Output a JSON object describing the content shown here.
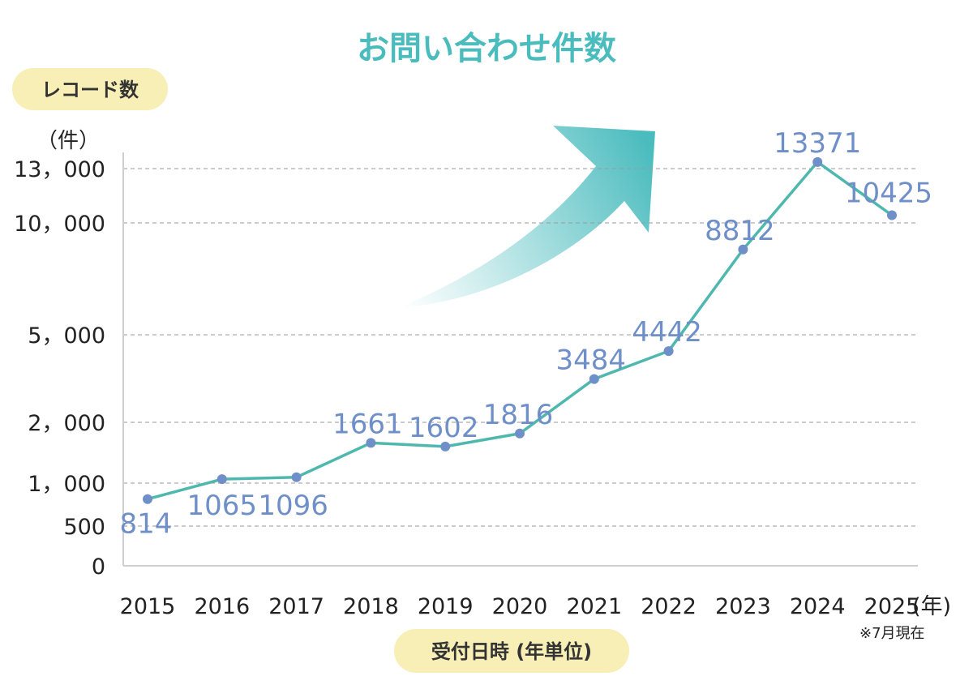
{
  "title": "お問い合わせ件数",
  "y_pill": "レコード数",
  "y_unit": "（件）",
  "x_pill": "受付日時 (年単位)",
  "x_unit": "(年)",
  "note": "※7月現在",
  "colors": {
    "title": "#4bbcbe",
    "line": "#4fb8ae",
    "point": "#6f8fc9",
    "label": "#6f8fc9",
    "pill": "#f7efb6",
    "arrow": "#4bbcbe"
  },
  "chart_data": {
    "type": "line",
    "title": "お問い合わせ件数",
    "xlabel": "受付日時 (年単位)",
    "ylabel": "レコード数",
    "categories": [
      "2015",
      "2016",
      "2017",
      "2018",
      "2019",
      "2020",
      "2021",
      "2022",
      "2023",
      "2024",
      "2025"
    ],
    "values": [
      814,
      1065,
      1096,
      1661,
      1602,
      1816,
      3484,
      4442,
      8812,
      13371,
      10425
    ],
    "data_labels": [
      "814",
      "1065",
      "1096",
      "1661",
      "1602",
      "1816",
      "3484",
      "4442",
      "8812",
      "13371",
      "10425"
    ],
    "y_ticks": [
      0,
      500,
      1000,
      2000,
      5000,
      10000,
      13000
    ],
    "y_tick_labels": [
      "0",
      "500",
      "1，000",
      "2，000",
      "5，000",
      "10，000",
      "13，000"
    ],
    "y_scale": "non-linear (compressed, roughly square-root)",
    "ylim": [
      0,
      13500
    ],
    "grid": "horizontal dashed",
    "legend": "none"
  }
}
